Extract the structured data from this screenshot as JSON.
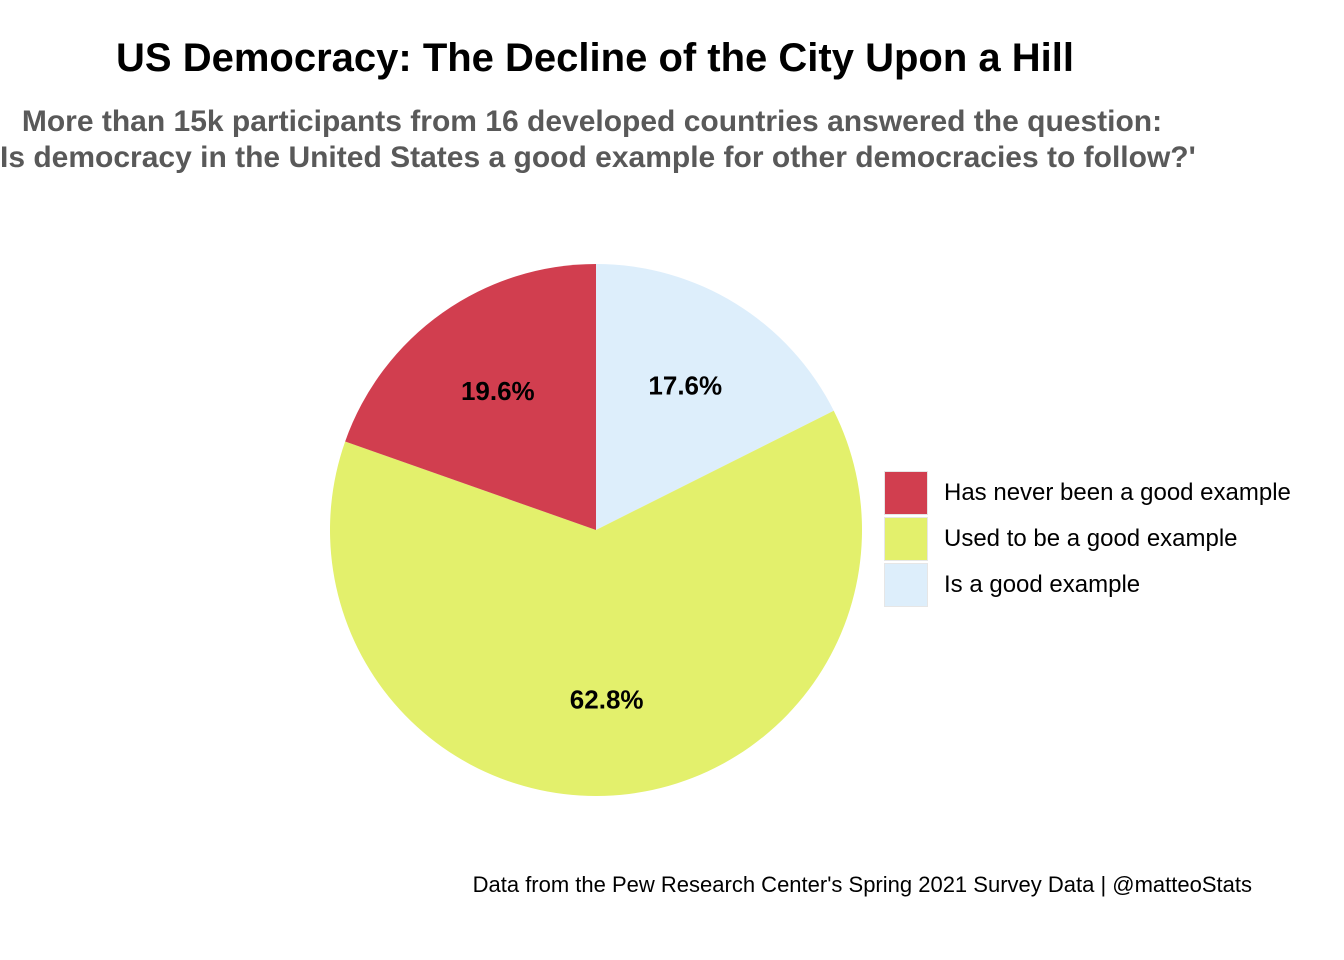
{
  "chart_data": {
    "type": "pie",
    "title": "US Democracy: The Decline of the City Upon a Hill",
    "subtitle": [
      "More than 15k participants from 16 developed countries answered the question:",
      "Is democracy in the United States a good example for other democracies to follow?'"
    ],
    "caption": "Data from the Pew Research Center's Spring 2021 Survey Data | @matteoStats",
    "slices": [
      {
        "label": "Is a good example",
        "value": 17.6,
        "display": "17.6%",
        "color": "#DDEEFB"
      },
      {
        "label": "Used to be a good example",
        "value": 62.8,
        "display": "62.8%",
        "color": "#E3F06C"
      },
      {
        "label": "Has never been a good example",
        "value": 19.6,
        "display": "19.6%",
        "color": "#D13E4F"
      }
    ],
    "legend": {
      "placement": "right",
      "items": [
        {
          "label": "Has never been a good example",
          "color": "#D13E4F"
        },
        {
          "label": "Used to be a good example",
          "color": "#E3F06C"
        },
        {
          "label": "Is a good example",
          "color": "#DDEEFB"
        }
      ]
    }
  }
}
